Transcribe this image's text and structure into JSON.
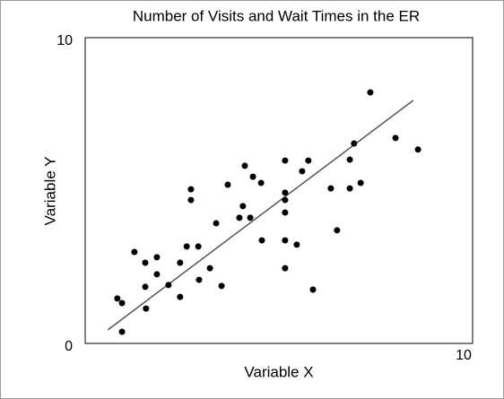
{
  "chart_data": {
    "type": "scatter",
    "title": "Number of Visits and Wait Times in the ER",
    "x_label": "Variable X",
    "y_label": "Variable Y",
    "xlim": [
      0,
      10
    ],
    "ylim": [
      0,
      10
    ],
    "xticks": [
      10
    ],
    "yticks": [
      0,
      10
    ],
    "grid": false,
    "color": "#000000",
    "x": [
      7.36,
      8.01,
      8.59,
      6.94,
      6.83,
      5.76,
      5.16,
      5.6,
      4.12,
      4.33,
      4.54,
      3.68,
      2.73,
      2.73,
      5.16,
      5.16,
      6.34,
      6.83,
      7.11,
      5.16,
      4.07,
      3.98,
      4.26,
      3.38,
      1.27,
      1.85,
      1.55,
      2.62,
      2.92,
      2.45,
      1.85,
      3.22,
      4.56,
      5.16,
      5.46,
      6.5,
      5.16,
      1.55,
      2.15,
      2.94,
      3.52,
      2.45,
      5.88,
      0.83,
      0.95,
      1.57,
      0.95
    ],
    "values": [
      8.21,
      6.72,
      6.34,
      6.54,
      6.01,
      5.98,
      5.98,
      5.63,
      5.81,
      5.45,
      5.25,
      5.19,
      5.04,
      4.69,
      4.93,
      4.69,
      5.07,
      5.07,
      5.25,
      4.28,
      4.49,
      4.11,
      4.11,
      3.93,
      2.99,
      2.82,
      2.64,
      3.17,
      3.17,
      2.64,
      2.26,
      2.46,
      3.37,
      3.37,
      3.23,
      3.7,
      2.46,
      1.85,
      1.91,
      2.08,
      1.88,
      1.52,
      1.76,
      1.47,
      1.32,
      1.14,
      0.38
    ],
    "trendline": {
      "x": [
        0.58,
        8.47
      ],
      "y": [
        0.44,
        7.95
      ],
      "color": "#555555"
    }
  }
}
